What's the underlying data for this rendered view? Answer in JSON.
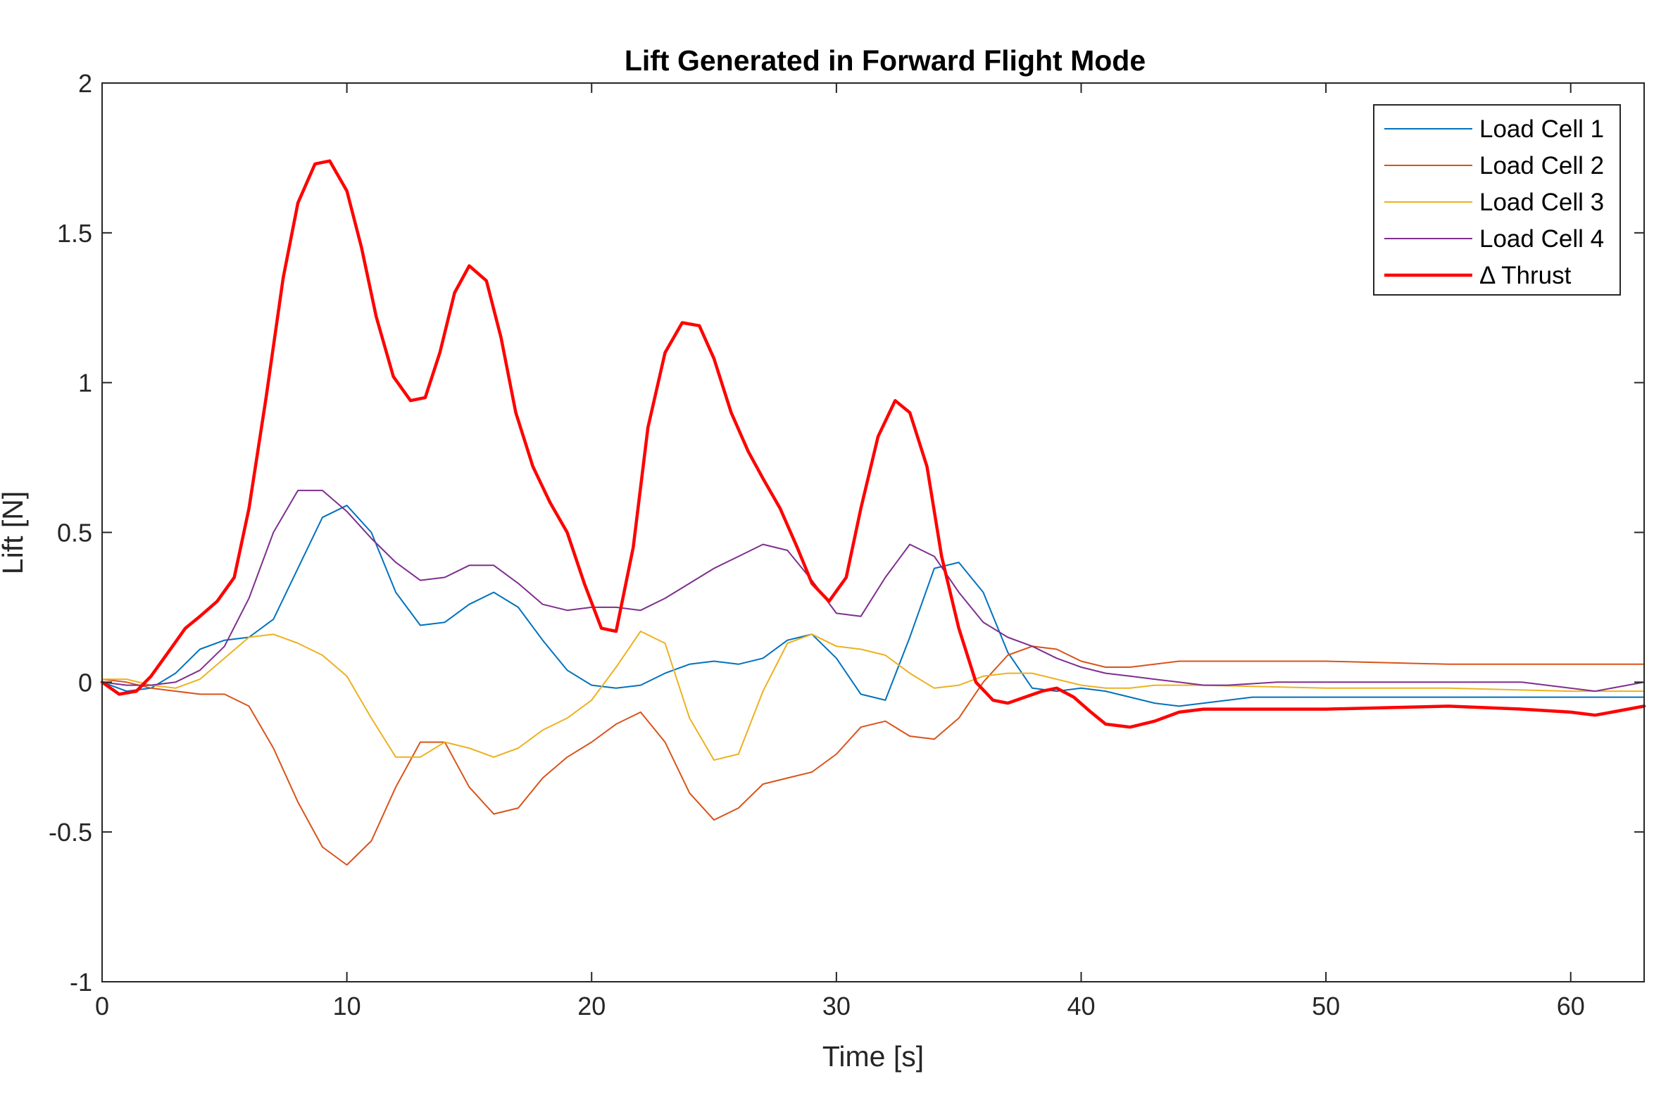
{
  "chart_data": {
    "type": "line",
    "title": "Lift Generated in Forward Flight Mode",
    "xlabel": "Time [s]",
    "ylabel": "Lift [N]",
    "xlim": [
      0,
      63
    ],
    "ylim": [
      -1,
      2
    ],
    "xticks": [
      0,
      10,
      20,
      30,
      40,
      50,
      60
    ],
    "yticks": [
      -1,
      -0.5,
      0,
      0.5,
      1,
      1.5,
      2
    ],
    "xtick_labels": [
      "0",
      "10",
      "20",
      "30",
      "40",
      "50",
      "60"
    ],
    "ytick_labels": [
      "-1",
      "-0.5",
      "0",
      "0.5",
      "1",
      "1.5",
      "2"
    ],
    "grid": false,
    "legend_position": "top-right",
    "series": [
      {
        "name": "Load Cell 1",
        "color": "#0072bd",
        "line_width": 1,
        "x": [
          0,
          1,
          2,
          3,
          4,
          5,
          6,
          7,
          8,
          9,
          10,
          11,
          12,
          13,
          14,
          15,
          16,
          17,
          18,
          19,
          20,
          21,
          22,
          23,
          24,
          25,
          26,
          27,
          28,
          29,
          30,
          31,
          32,
          33,
          34,
          35,
          36,
          37,
          38,
          39,
          40,
          41,
          42,
          43,
          44,
          45,
          46,
          47,
          48,
          50,
          55,
          60,
          63
        ],
        "y": [
          0.0,
          -0.03,
          -0.02,
          0.03,
          0.11,
          0.14,
          0.15,
          0.21,
          0.38,
          0.55,
          0.59,
          0.5,
          0.3,
          0.19,
          0.2,
          0.26,
          0.3,
          0.25,
          0.14,
          0.04,
          -0.01,
          -0.02,
          -0.01,
          0.03,
          0.06,
          0.07,
          0.06,
          0.08,
          0.14,
          0.16,
          0.08,
          -0.04,
          -0.06,
          0.15,
          0.38,
          0.4,
          0.3,
          0.1,
          -0.02,
          -0.03,
          -0.02,
          -0.03,
          -0.05,
          -0.07,
          -0.08,
          -0.07,
          -0.06,
          -0.05,
          -0.05,
          -0.05,
          -0.05,
          -0.05,
          -0.05
        ]
      },
      {
        "name": "Load Cell 2",
        "color": "#d95319",
        "line_width": 1,
        "x": [
          0,
          1,
          2,
          3,
          4,
          5,
          6,
          7,
          8,
          9,
          10,
          11,
          12,
          13,
          14,
          15,
          16,
          17,
          18,
          19,
          20,
          21,
          22,
          23,
          24,
          25,
          26,
          27,
          28,
          29,
          30,
          31,
          32,
          33,
          34,
          35,
          36,
          37,
          38,
          39,
          40,
          41,
          42,
          43,
          44,
          45,
          50,
          55,
          60,
          63
        ],
        "y": [
          0.01,
          0.0,
          -0.02,
          -0.03,
          -0.04,
          -0.04,
          -0.08,
          -0.22,
          -0.4,
          -0.55,
          -0.61,
          -0.53,
          -0.35,
          -0.2,
          -0.2,
          -0.35,
          -0.44,
          -0.42,
          -0.32,
          -0.25,
          -0.2,
          -0.14,
          -0.1,
          -0.2,
          -0.37,
          -0.46,
          -0.42,
          -0.34,
          -0.32,
          -0.3,
          -0.24,
          -0.15,
          -0.13,
          -0.18,
          -0.19,
          -0.12,
          0.0,
          0.09,
          0.12,
          0.11,
          0.07,
          0.05,
          0.05,
          0.06,
          0.07,
          0.07,
          0.07,
          0.06,
          0.06,
          0.06
        ]
      },
      {
        "name": "Load Cell 3",
        "color": "#edb120",
        "line_width": 1,
        "x": [
          0,
          1,
          2,
          3,
          4,
          5,
          6,
          7,
          8,
          9,
          10,
          11,
          12,
          13,
          14,
          15,
          16,
          17,
          18,
          19,
          20,
          21,
          22,
          23,
          24,
          25,
          26,
          27,
          28,
          29,
          30,
          31,
          32,
          33,
          34,
          35,
          36,
          37,
          38,
          39,
          40,
          41,
          42,
          43,
          44,
          45,
          50,
          55,
          60,
          63
        ],
        "y": [
          0.01,
          0.01,
          -0.01,
          -0.02,
          0.01,
          0.08,
          0.15,
          0.16,
          0.13,
          0.09,
          0.02,
          -0.12,
          -0.25,
          -0.25,
          -0.2,
          -0.22,
          -0.25,
          -0.22,
          -0.16,
          -0.12,
          -0.06,
          0.05,
          0.17,
          0.13,
          -0.12,
          -0.26,
          -0.24,
          -0.03,
          0.13,
          0.16,
          0.12,
          0.11,
          0.09,
          0.03,
          -0.02,
          -0.01,
          0.02,
          0.03,
          0.03,
          0.01,
          -0.01,
          -0.02,
          -0.02,
          -0.01,
          -0.01,
          -0.01,
          -0.02,
          -0.02,
          -0.03,
          -0.03
        ]
      },
      {
        "name": "Load Cell 4",
        "color": "#7e2f8e",
        "line_width": 1,
        "x": [
          0,
          1,
          2,
          3,
          4,
          5,
          6,
          7,
          8,
          9,
          10,
          11,
          12,
          13,
          14,
          15,
          16,
          17,
          18,
          19,
          20,
          21,
          22,
          23,
          24,
          25,
          26,
          27,
          28,
          29,
          30,
          31,
          32,
          33,
          34,
          35,
          36,
          37,
          38,
          39,
          40,
          41,
          42,
          43,
          44,
          45,
          46,
          48,
          50,
          55,
          58,
          61,
          63
        ],
        "y": [
          0.0,
          -0.01,
          -0.01,
          0.0,
          0.04,
          0.12,
          0.28,
          0.5,
          0.64,
          0.64,
          0.57,
          0.48,
          0.4,
          0.34,
          0.35,
          0.39,
          0.39,
          0.33,
          0.26,
          0.24,
          0.25,
          0.25,
          0.24,
          0.28,
          0.33,
          0.38,
          0.42,
          0.46,
          0.44,
          0.34,
          0.23,
          0.22,
          0.35,
          0.46,
          0.42,
          0.3,
          0.2,
          0.15,
          0.12,
          0.08,
          0.05,
          0.03,
          0.02,
          0.01,
          0.0,
          -0.01,
          -0.01,
          0.0,
          0.0,
          0.0,
          0.0,
          -0.03,
          0.0
        ]
      },
      {
        "name": "Δ Thrust",
        "color": "#ff0000",
        "line_width": 2,
        "x": [
          0,
          0.7,
          1.4,
          2,
          2.7,
          3.4,
          4,
          4.7,
          5.4,
          6,
          6.7,
          7.4,
          8,
          8.7,
          9.3,
          10,
          10.6,
          11.2,
          11.9,
          12.6,
          13.2,
          13.8,
          14.4,
          15,
          15.7,
          16.3,
          16.9,
          17.6,
          18.3,
          19,
          19.7,
          20.4,
          21,
          21.7,
          22.3,
          23,
          23.7,
          24.4,
          25,
          25.7,
          26.4,
          27,
          27.7,
          28.4,
          29,
          29.7,
          30.4,
          31,
          31.7,
          32.4,
          33,
          33.7,
          34.3,
          35,
          35.7,
          36.4,
          37,
          37.7,
          38.4,
          39,
          39.7,
          40.4,
          41,
          42,
          43,
          44,
          45,
          46,
          47,
          48,
          50,
          55,
          58,
          60,
          61,
          63
        ],
        "y": [
          0.0,
          -0.04,
          -0.03,
          0.02,
          0.1,
          0.18,
          0.22,
          0.27,
          0.35,
          0.58,
          0.95,
          1.35,
          1.6,
          1.73,
          1.74,
          1.64,
          1.45,
          1.22,
          1.02,
          0.94,
          0.95,
          1.1,
          1.3,
          1.39,
          1.34,
          1.15,
          0.9,
          0.72,
          0.6,
          0.5,
          0.33,
          0.18,
          0.17,
          0.45,
          0.85,
          1.1,
          1.2,
          1.19,
          1.08,
          0.9,
          0.77,
          0.68,
          0.58,
          0.45,
          0.33,
          0.27,
          0.35,
          0.58,
          0.82,
          0.94,
          0.9,
          0.72,
          0.42,
          0.18,
          0.0,
          -0.06,
          -0.07,
          -0.05,
          -0.03,
          -0.02,
          -0.05,
          -0.1,
          -0.14,
          -0.15,
          -0.13,
          -0.1,
          -0.09,
          -0.09,
          -0.09,
          -0.09,
          -0.09,
          -0.08,
          -0.09,
          -0.1,
          -0.11,
          -0.08
        ]
      }
    ]
  }
}
